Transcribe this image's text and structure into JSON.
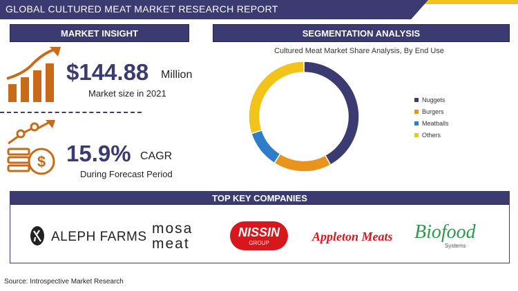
{
  "report": {
    "title": "GLOBAL CULTURED MEAT MARKET RESEARCH REPORT",
    "source": "Source: Introspective Market Research"
  },
  "market_insight": {
    "header": "MARKET INSIGHT",
    "market_size_value": "$144.88",
    "market_size_unit": "Million",
    "market_size_caption": "Market size in 2021",
    "cagr_value": "15.9%",
    "cagr_unit": "CAGR",
    "cagr_caption": "During Forecast Period"
  },
  "segmentation": {
    "header": "SEGMENTATION ANALYSIS"
  },
  "chart_data": {
    "type": "pie",
    "title": "Cultured Meat Market Share Analysis, By End Use",
    "categories": [
      "Nuggets",
      "Burgers",
      "Meatballs",
      "Others"
    ],
    "values": [
      42,
      17,
      11,
      30
    ],
    "colors": [
      "#3b3b72",
      "#e8931c",
      "#2e7dc9",
      "#f2c318"
    ],
    "legend_position": "right"
  },
  "companies": {
    "header": "TOP KEY COMPANIES",
    "items": [
      {
        "name": "ALEPH FARMS"
      },
      {
        "name_line1": "MOSA",
        "name_line2": "MEAT"
      },
      {
        "name": "NISSIN",
        "sub": "GROUP"
      },
      {
        "name": "Appleton Meats"
      },
      {
        "name": "Biofood",
        "sub": "Systems"
      }
    ]
  },
  "icons": [
    "growth-chart-icon",
    "money-growth-icon",
    "aleph-logo-icon"
  ]
}
